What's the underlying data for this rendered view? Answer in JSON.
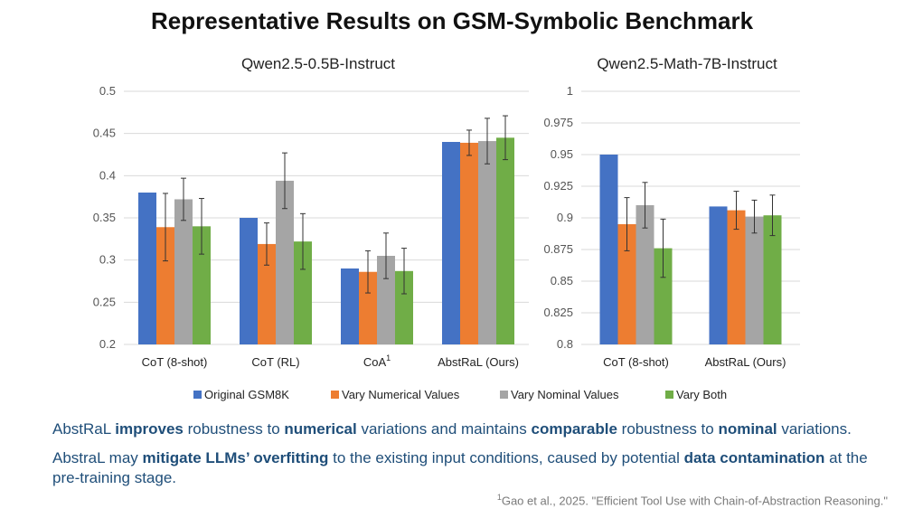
{
  "title": "Representative Results on GSM-Symbolic Benchmark",
  "colors": {
    "Original GSM8K": "#4472c4",
    "Vary Numerical Values": "#ed7d31",
    "Vary  Nominal Values": "#a5a5a5",
    "Vary Both": "#70ad47"
  },
  "chart_data": [
    {
      "type": "bar",
      "title": "Qwen2.5-0.5B-Instruct",
      "categories": [
        "CoT (8-shot)",
        "CoT (RL)",
        "CoA",
        "AbstRaL (Ours)"
      ],
      "category_superscripts": [
        "",
        "",
        "1",
        ""
      ],
      "ylim": [
        0.2,
        0.5
      ],
      "yticks": [
        "0.2",
        "0.25",
        "0.3",
        "0.35",
        "0.4",
        "0.45",
        "0.5"
      ],
      "xlabel": "",
      "ylabel": "",
      "series": [
        {
          "name": "Original GSM8K",
          "values": [
            0.38,
            0.35,
            0.29,
            0.44
          ],
          "errors": [
            null,
            null,
            null,
            null
          ]
        },
        {
          "name": "Vary Numerical Values",
          "values": [
            0.339,
            0.319,
            0.286,
            0.439
          ],
          "errors": [
            0.04,
            0.025,
            0.025,
            0.015
          ]
        },
        {
          "name": "Vary  Nominal Values",
          "values": [
            0.372,
            0.394,
            0.305,
            0.441
          ],
          "errors": [
            0.025,
            0.033,
            0.027,
            0.027
          ]
        },
        {
          "name": "Vary Both",
          "values": [
            0.34,
            0.322,
            0.287,
            0.445
          ],
          "errors": [
            0.033,
            0.033,
            0.027,
            0.026
          ]
        }
      ]
    },
    {
      "type": "bar",
      "title": "Qwen2.5-Math-7B-Instruct",
      "categories": [
        "CoT (8-shot)",
        "AbstRaL (Ours)"
      ],
      "category_superscripts": [
        "",
        ""
      ],
      "ylim": [
        0.8,
        1.0
      ],
      "yticks": [
        "0.8",
        "0.825",
        "0.85",
        "0.875",
        "0.9",
        "0.925",
        "0.95",
        "0.975",
        "1"
      ],
      "xlabel": "",
      "ylabel": "",
      "series": [
        {
          "name": "Original GSM8K",
          "values": [
            0.95,
            0.909
          ],
          "errors": [
            null,
            null
          ]
        },
        {
          "name": "Vary Numerical Values",
          "values": [
            0.895,
            0.906
          ],
          "errors": [
            0.021,
            0.015
          ]
        },
        {
          "name": "Vary  Nominal Values",
          "values": [
            0.91,
            0.901
          ],
          "errors": [
            0.018,
            0.013
          ]
        },
        {
          "name": "Vary Both",
          "values": [
            0.876,
            0.902
          ],
          "errors": [
            0.023,
            0.016
          ]
        }
      ]
    }
  ],
  "legend": [
    "Original GSM8K",
    "Vary Numerical Values",
    "Vary  Nominal Values",
    "Vary Both"
  ],
  "notes": {
    "line1": [
      {
        "t": "AbstRaL ",
        "b": false
      },
      {
        "t": "improves",
        "b": true
      },
      {
        "t": " robustness to ",
        "b": false
      },
      {
        "t": "numerical",
        "b": true
      },
      {
        "t": " variations and maintains ",
        "b": false
      },
      {
        "t": "comparable",
        "b": true
      },
      {
        "t": " robustness to ",
        "b": false
      },
      {
        "t": "nominal",
        "b": true
      },
      {
        "t": " variations.",
        "b": false
      }
    ],
    "line2": [
      {
        "t": "AbstraL may ",
        "b": false
      },
      {
        "t": "mitigate LLMs’ overfitting",
        "b": true
      },
      {
        "t": " to the existing input conditions, caused by potential ",
        "b": false
      },
      {
        "t": "data contamination",
        "b": true
      },
      {
        "t": " at the pre-training stage.",
        "b": false
      }
    ]
  },
  "footnote": {
    "sup": "1",
    "text": "Gao et al., 2025. \"Efficient Tool Use with Chain-of-Abstraction Reasoning.\""
  }
}
